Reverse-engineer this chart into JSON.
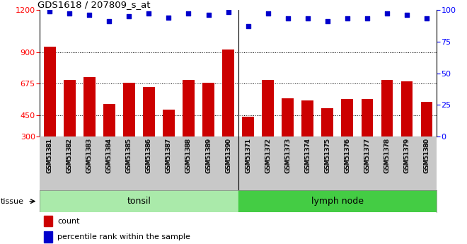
{
  "title": "GDS1618 / 207809_s_at",
  "samples": [
    "GSM51381",
    "GSM51382",
    "GSM51383",
    "GSM51384",
    "GSM51385",
    "GSM51386",
    "GSM51387",
    "GSM51388",
    "GSM51389",
    "GSM51390",
    "GSM51371",
    "GSM51372",
    "GSM51373",
    "GSM51374",
    "GSM51375",
    "GSM51376",
    "GSM51377",
    "GSM51378",
    "GSM51379",
    "GSM51380"
  ],
  "counts": [
    940,
    700,
    720,
    530,
    680,
    650,
    490,
    700,
    680,
    920,
    440,
    700,
    570,
    555,
    500,
    565,
    565,
    700,
    690,
    545
  ],
  "percentiles": [
    99,
    97,
    96,
    91,
    95,
    97,
    94,
    97,
    96,
    98,
    87,
    97,
    93,
    93,
    91,
    93,
    93,
    97,
    96,
    93
  ],
  "tonsil_count": 10,
  "lymph_count": 10,
  "bar_color": "#cc0000",
  "dot_color": "#0000cc",
  "ylim_left": [
    300,
    1200
  ],
  "ylim_right": [
    0,
    100
  ],
  "yticks_left": [
    300,
    450,
    675,
    900,
    1200
  ],
  "yticks_right": [
    0,
    25,
    50,
    75,
    100
  ],
  "grid_lines": [
    450,
    675,
    900
  ],
  "tonsil_color": "#aaeaaa",
  "lymph_color": "#44cc44",
  "bg_color": "#c8c8c8",
  "tissue_label": "tissue",
  "legend_count": "count",
  "legend_percentile": "percentile rank within the sample"
}
